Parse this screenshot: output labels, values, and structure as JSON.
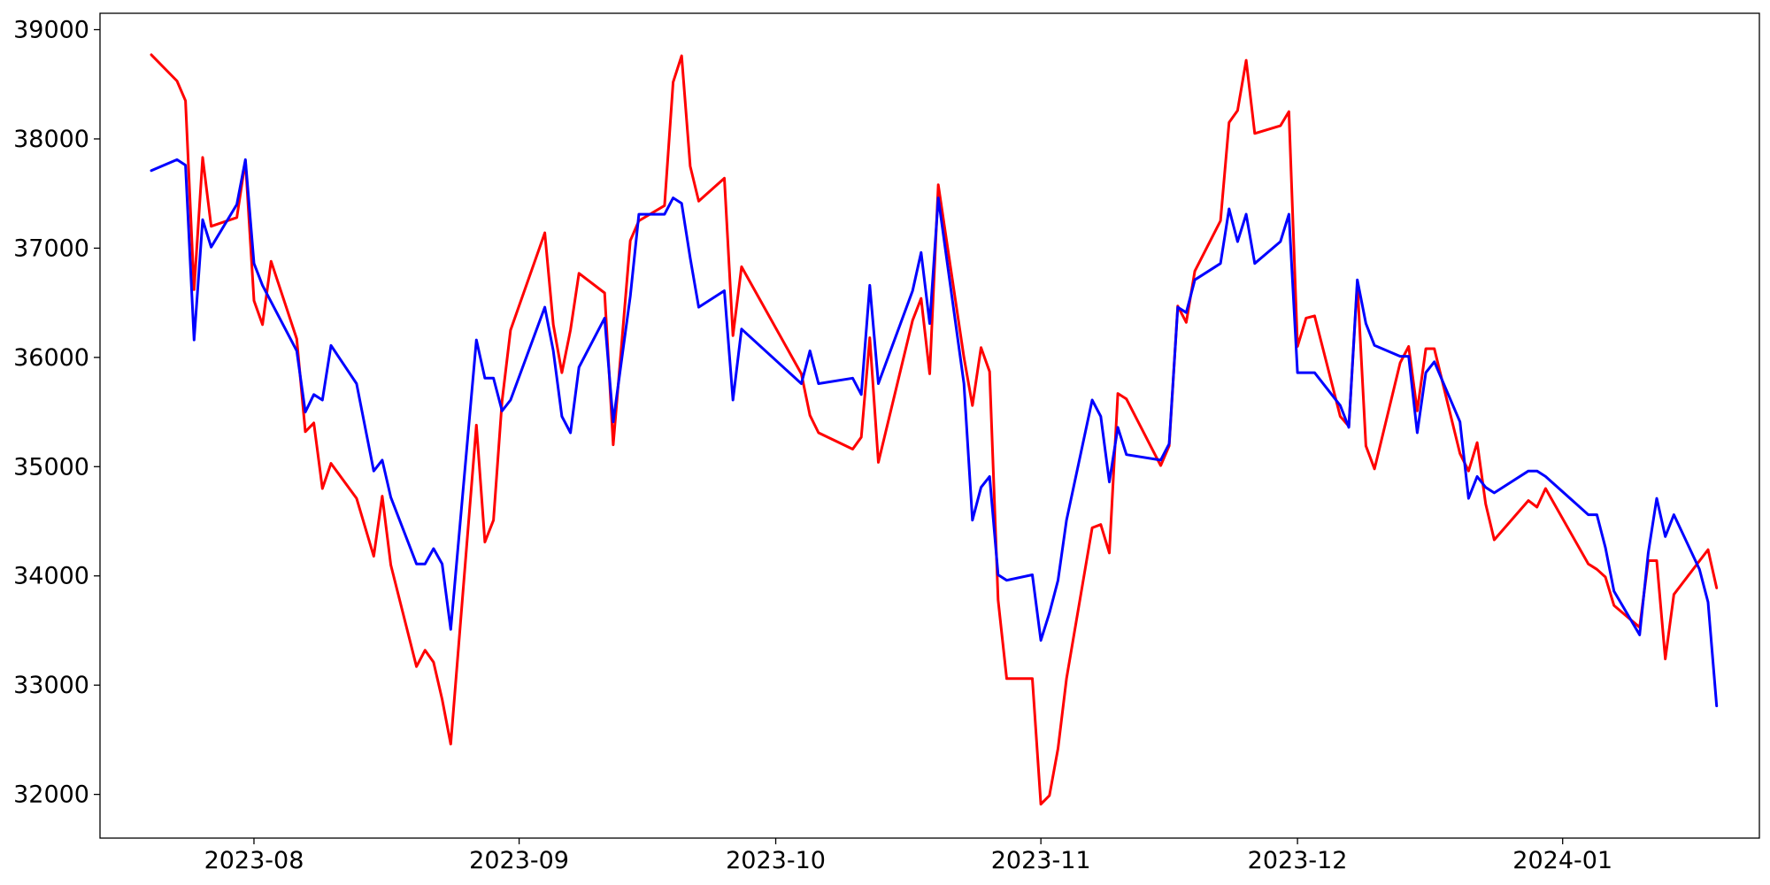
{
  "chart_data": {
    "type": "line",
    "title": "",
    "xlabel": "",
    "ylabel": "",
    "grid": false,
    "legend": "none",
    "x_range": [
      "2023-07-14",
      "2024-01-24"
    ],
    "ylim": [
      31600,
      39150
    ],
    "x_ticks": [
      {
        "date": "2023-08-01",
        "label": "2023-08"
      },
      {
        "date": "2023-09-01",
        "label": "2023-09"
      },
      {
        "date": "2023-10-01",
        "label": "2023-10"
      },
      {
        "date": "2023-11-01",
        "label": "2023-11"
      },
      {
        "date": "2023-12-01",
        "label": "2023-12"
      },
      {
        "date": "2024-01-01",
        "label": "2024-01"
      }
    ],
    "y_ticks": [
      {
        "value": 32000,
        "label": "32000"
      },
      {
        "value": 33000,
        "label": "33000"
      },
      {
        "value": 34000,
        "label": "34000"
      },
      {
        "value": 35000,
        "label": "35000"
      },
      {
        "value": 36000,
        "label": "36000"
      },
      {
        "value": 37000,
        "label": "37000"
      },
      {
        "value": 38000,
        "label": "38000"
      },
      {
        "value": 39000,
        "label": "39000"
      }
    ],
    "series": [
      {
        "color": "#ff0000",
        "points": [
          [
            "2023-07-20",
            38770
          ],
          [
            "2023-07-23",
            38530
          ],
          [
            "2023-07-24",
            38350
          ],
          [
            "2023-07-25",
            36620
          ],
          [
            "2023-07-26",
            37830
          ],
          [
            "2023-07-27",
            37200
          ],
          [
            "2023-07-30",
            37280
          ],
          [
            "2023-07-31",
            37800
          ],
          [
            "2023-08-01",
            36520
          ],
          [
            "2023-08-02",
            36300
          ],
          [
            "2023-08-03",
            36880
          ],
          [
            "2023-08-06",
            36170
          ],
          [
            "2023-08-07",
            35320
          ],
          [
            "2023-08-08",
            35400
          ],
          [
            "2023-08-09",
            34800
          ],
          [
            "2023-08-10",
            35030
          ],
          [
            "2023-08-13",
            34710
          ],
          [
            "2023-08-15",
            34180
          ],
          [
            "2023-08-16",
            34730
          ],
          [
            "2023-08-17",
            34100
          ],
          [
            "2023-08-20",
            33170
          ],
          [
            "2023-08-21",
            33320
          ],
          [
            "2023-08-22",
            33210
          ],
          [
            "2023-08-23",
            32870
          ],
          [
            "2023-08-24",
            32460
          ],
          [
            "2023-08-27",
            35380
          ],
          [
            "2023-08-28",
            34310
          ],
          [
            "2023-08-29",
            34510
          ],
          [
            "2023-08-30",
            35600
          ],
          [
            "2023-08-31",
            36250
          ],
          [
            "2023-09-04",
            37140
          ],
          [
            "2023-09-05",
            36300
          ],
          [
            "2023-09-06",
            35860
          ],
          [
            "2023-09-07",
            36250
          ],
          [
            "2023-09-08",
            36770
          ],
          [
            "2023-09-11",
            36590
          ],
          [
            "2023-09-12",
            35200
          ],
          [
            "2023-09-14",
            37070
          ],
          [
            "2023-09-15",
            37250
          ],
          [
            "2023-09-18",
            37390
          ],
          [
            "2023-09-19",
            38520
          ],
          [
            "2023-09-20",
            38760
          ],
          [
            "2023-09-21",
            37750
          ],
          [
            "2023-09-22",
            37430
          ],
          [
            "2023-09-25",
            37640
          ],
          [
            "2023-09-26",
            36200
          ],
          [
            "2023-09-27",
            36830
          ],
          [
            "2023-10-04",
            35850
          ],
          [
            "2023-10-05",
            35470
          ],
          [
            "2023-10-06",
            35310
          ],
          [
            "2023-10-10",
            35160
          ],
          [
            "2023-10-11",
            35270
          ],
          [
            "2023-10-12",
            36180
          ],
          [
            "2023-10-13",
            35040
          ],
          [
            "2023-10-17",
            36340
          ],
          [
            "2023-10-18",
            36540
          ],
          [
            "2023-10-19",
            35850
          ],
          [
            "2023-10-20",
            37580
          ],
          [
            "2023-10-23",
            36000
          ],
          [
            "2023-10-24",
            35560
          ],
          [
            "2023-10-25",
            36090
          ],
          [
            "2023-10-26",
            35870
          ],
          [
            "2023-10-27",
            33780
          ],
          [
            "2023-10-28",
            33060
          ],
          [
            "2023-10-31",
            33060
          ],
          [
            "2023-11-01",
            31910
          ],
          [
            "2023-11-02",
            31990
          ],
          [
            "2023-11-03",
            32420
          ],
          [
            "2023-11-04",
            33060
          ],
          [
            "2023-11-07",
            34440
          ],
          [
            "2023-11-08",
            34470
          ],
          [
            "2023-11-09",
            34210
          ],
          [
            "2023-11-10",
            35670
          ],
          [
            "2023-11-11",
            35620
          ],
          [
            "2023-11-15",
            35010
          ],
          [
            "2023-11-16",
            35190
          ],
          [
            "2023-11-17",
            36470
          ],
          [
            "2023-11-18",
            36320
          ],
          [
            "2023-11-19",
            36790
          ],
          [
            "2023-11-22",
            37250
          ],
          [
            "2023-11-23",
            38150
          ],
          [
            "2023-11-24",
            38260
          ],
          [
            "2023-11-25",
            38720
          ],
          [
            "2023-11-26",
            38050
          ],
          [
            "2023-11-29",
            38120
          ],
          [
            "2023-11-30",
            38250
          ],
          [
            "2023-12-01",
            36100
          ],
          [
            "2023-12-02",
            36360
          ],
          [
            "2023-12-03",
            36380
          ],
          [
            "2023-12-06",
            35460
          ],
          [
            "2023-12-07",
            35370
          ],
          [
            "2023-12-08",
            36680
          ],
          [
            "2023-12-09",
            35190
          ],
          [
            "2023-12-10",
            34980
          ],
          [
            "2023-12-13",
            35950
          ],
          [
            "2023-12-14",
            36100
          ],
          [
            "2023-12-15",
            35510
          ],
          [
            "2023-12-16",
            36080
          ],
          [
            "2023-12-17",
            36080
          ],
          [
            "2023-12-20",
            35120
          ],
          [
            "2023-12-21",
            34960
          ],
          [
            "2023-12-22",
            35220
          ],
          [
            "2023-12-23",
            34660
          ],
          [
            "2023-12-24",
            34330
          ],
          [
            "2023-12-28",
            34690
          ],
          [
            "2023-12-29",
            34630
          ],
          [
            "2023-12-30",
            34800
          ],
          [
            "2024-01-04",
            34110
          ],
          [
            "2024-01-05",
            34060
          ],
          [
            "2024-01-06",
            33990
          ],
          [
            "2024-01-07",
            33730
          ],
          [
            "2024-01-10",
            33530
          ],
          [
            "2024-01-11",
            34140
          ],
          [
            "2024-01-12",
            34140
          ],
          [
            "2024-01-13",
            33240
          ],
          [
            "2024-01-14",
            33830
          ],
          [
            "2024-01-18",
            34240
          ],
          [
            "2024-01-19",
            33890
          ]
        ]
      },
      {
        "color": "#0000ff",
        "points": [
          [
            "2023-07-20",
            37710
          ],
          [
            "2023-07-23",
            37810
          ],
          [
            "2023-07-24",
            37760
          ],
          [
            "2023-07-25",
            36160
          ],
          [
            "2023-07-26",
            37260
          ],
          [
            "2023-07-27",
            37010
          ],
          [
            "2023-07-30",
            37400
          ],
          [
            "2023-07-31",
            37810
          ],
          [
            "2023-08-01",
            36860
          ],
          [
            "2023-08-02",
            36660
          ],
          [
            "2023-08-06",
            36060
          ],
          [
            "2023-08-07",
            35500
          ],
          [
            "2023-08-08",
            35660
          ],
          [
            "2023-08-09",
            35610
          ],
          [
            "2023-08-10",
            36110
          ],
          [
            "2023-08-13",
            35760
          ],
          [
            "2023-08-15",
            34960
          ],
          [
            "2023-08-16",
            35060
          ],
          [
            "2023-08-17",
            34720
          ],
          [
            "2023-08-20",
            34110
          ],
          [
            "2023-08-21",
            34110
          ],
          [
            "2023-08-22",
            34250
          ],
          [
            "2023-08-23",
            34110
          ],
          [
            "2023-08-24",
            33510
          ],
          [
            "2023-08-27",
            36160
          ],
          [
            "2023-08-28",
            35810
          ],
          [
            "2023-08-29",
            35810
          ],
          [
            "2023-08-30",
            35510
          ],
          [
            "2023-08-31",
            35610
          ],
          [
            "2023-09-04",
            36460
          ],
          [
            "2023-09-05",
            36060
          ],
          [
            "2023-09-06",
            35460
          ],
          [
            "2023-09-07",
            35310
          ],
          [
            "2023-09-08",
            35910
          ],
          [
            "2023-09-11",
            36360
          ],
          [
            "2023-09-12",
            35410
          ],
          [
            "2023-09-14",
            36560
          ],
          [
            "2023-09-15",
            37310
          ],
          [
            "2023-09-18",
            37310
          ],
          [
            "2023-09-19",
            37460
          ],
          [
            "2023-09-20",
            37410
          ],
          [
            "2023-09-21",
            36910
          ],
          [
            "2023-09-22",
            36460
          ],
          [
            "2023-09-25",
            36610
          ],
          [
            "2023-09-26",
            35610
          ],
          [
            "2023-09-27",
            36260
          ],
          [
            "2023-10-04",
            35760
          ],
          [
            "2023-10-05",
            36060
          ],
          [
            "2023-10-06",
            35760
          ],
          [
            "2023-10-10",
            35810
          ],
          [
            "2023-10-11",
            35660
          ],
          [
            "2023-10-12",
            36660
          ],
          [
            "2023-10-13",
            35760
          ],
          [
            "2023-10-17",
            36610
          ],
          [
            "2023-10-18",
            36960
          ],
          [
            "2023-10-19",
            36310
          ],
          [
            "2023-10-20",
            37460
          ],
          [
            "2023-10-23",
            35760
          ],
          [
            "2023-10-24",
            34510
          ],
          [
            "2023-10-25",
            34810
          ],
          [
            "2023-10-26",
            34910
          ],
          [
            "2023-10-27",
            34010
          ],
          [
            "2023-10-28",
            33960
          ],
          [
            "2023-10-31",
            34010
          ],
          [
            "2023-11-01",
            33410
          ],
          [
            "2023-11-02",
            33660
          ],
          [
            "2023-11-03",
            33960
          ],
          [
            "2023-11-04",
            34510
          ],
          [
            "2023-11-07",
            35610
          ],
          [
            "2023-11-08",
            35460
          ],
          [
            "2023-11-09",
            34860
          ],
          [
            "2023-11-10",
            35360
          ],
          [
            "2023-11-11",
            35110
          ],
          [
            "2023-11-15",
            35060
          ],
          [
            "2023-11-16",
            35210
          ],
          [
            "2023-11-17",
            36460
          ],
          [
            "2023-11-18",
            36410
          ],
          [
            "2023-11-19",
            36710
          ],
          [
            "2023-11-22",
            36860
          ],
          [
            "2023-11-23",
            37360
          ],
          [
            "2023-11-24",
            37060
          ],
          [
            "2023-11-25",
            37310
          ],
          [
            "2023-11-26",
            36860
          ],
          [
            "2023-11-29",
            37060
          ],
          [
            "2023-11-30",
            37310
          ],
          [
            "2023-12-01",
            35860
          ],
          [
            "2023-12-02",
            35860
          ],
          [
            "2023-12-03",
            35860
          ],
          [
            "2023-12-06",
            35560
          ],
          [
            "2023-12-07",
            35360
          ],
          [
            "2023-12-08",
            36710
          ],
          [
            "2023-12-09",
            36310
          ],
          [
            "2023-12-10",
            36110
          ],
          [
            "2023-12-13",
            36010
          ],
          [
            "2023-12-14",
            36010
          ],
          [
            "2023-12-15",
            35310
          ],
          [
            "2023-12-16",
            35860
          ],
          [
            "2023-12-17",
            35960
          ],
          [
            "2023-12-20",
            35410
          ],
          [
            "2023-12-21",
            34710
          ],
          [
            "2023-12-22",
            34910
          ],
          [
            "2023-12-23",
            34810
          ],
          [
            "2023-12-24",
            34760
          ],
          [
            "2023-12-28",
            34960
          ],
          [
            "2023-12-29",
            34960
          ],
          [
            "2023-12-30",
            34910
          ],
          [
            "2024-01-04",
            34560
          ],
          [
            "2024-01-05",
            34560
          ],
          [
            "2024-01-06",
            34260
          ],
          [
            "2024-01-07",
            33860
          ],
          [
            "2024-01-10",
            33460
          ],
          [
            "2024-01-11",
            34210
          ],
          [
            "2024-01-12",
            34710
          ],
          [
            "2024-01-13",
            34360
          ],
          [
            "2024-01-14",
            34560
          ],
          [
            "2024-01-17",
            34060
          ],
          [
            "2024-01-18",
            33760
          ],
          [
            "2024-01-19",
            32810
          ]
        ]
      }
    ]
  }
}
